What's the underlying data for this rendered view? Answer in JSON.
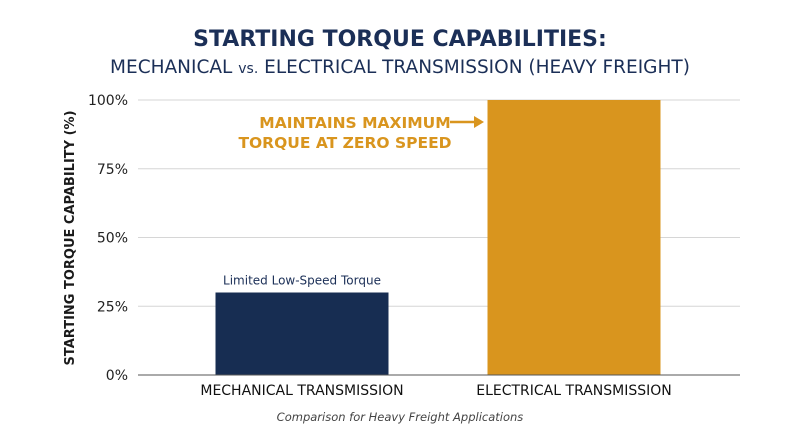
{
  "chart_data": {
    "type": "bar",
    "title": "STARTING TORQUE CAPABILITIES:",
    "subtitle_parts": [
      "MECHANICAL ",
      "vs.",
      " ELECTRICAL TRANSMISSION (HEAVY FREIGHT)"
    ],
    "ylabel": "STARTING TORQUE CAPABILITY (%)",
    "xlabel": "",
    "categories": [
      "MECHANICAL TRANSMISSION",
      "ELECTRICAL TRANSMISSION"
    ],
    "values": [
      30,
      100
    ],
    "colors": [
      "#172d52",
      "#d9951e"
    ],
    "ylim": [
      0,
      100
    ],
    "yticks": [
      0,
      25,
      50,
      75,
      100
    ],
    "ytick_labels": [
      "0%",
      "25%",
      "50%",
      "75%",
      "100%"
    ],
    "grid": true,
    "bar_labels": [
      "Limited Low-Speed Torque",
      ""
    ],
    "annotation": {
      "lines": [
        "MAINTAINS MAXIMUM",
        "TORQUE AT ZERO SPEED"
      ],
      "color": "#d9951e",
      "target": "ELECTRICAL TRANSMISSION"
    },
    "caption": "Comparison for Heavy Freight Applications"
  }
}
